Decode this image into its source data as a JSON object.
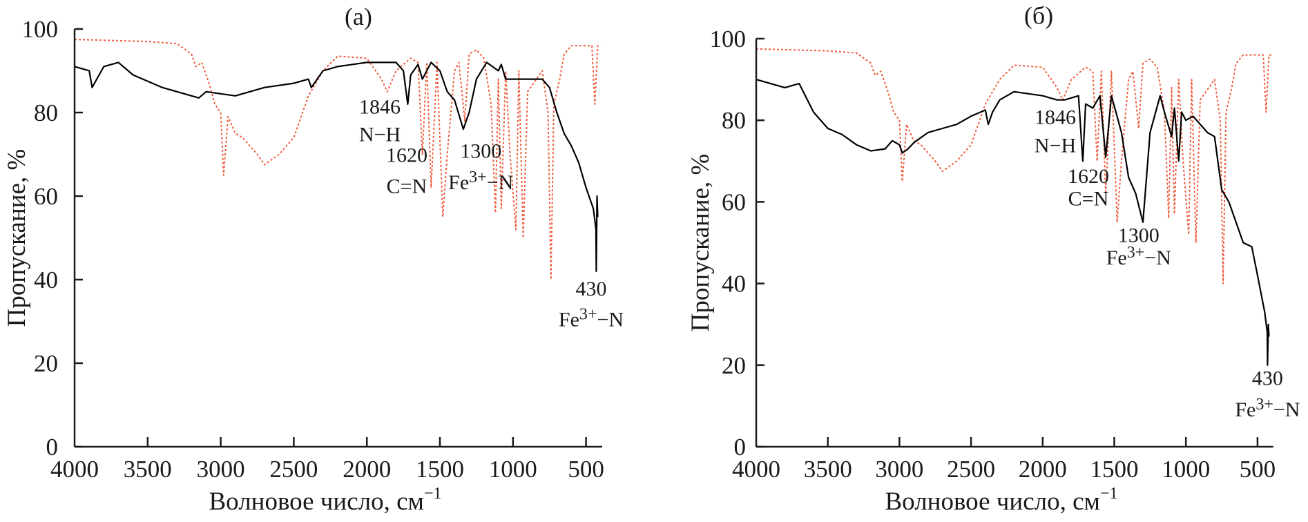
{
  "chart_data": [
    {
      "type": "line",
      "title": "(a)",
      "xlabel": "Волновое число, см",
      "xlabel_sup": "−1",
      "ylabel": "Пропускание, %",
      "xlim": [
        4000,
        400
      ],
      "ylim": [
        0,
        100
      ],
      "xticks": [
        4000,
        3500,
        3000,
        2500,
        2000,
        1500,
        1000,
        500
      ],
      "yticks": [
        0,
        20,
        40,
        60,
        80,
        100
      ],
      "grid": false,
      "series": [
        {
          "name": "reference",
          "color": "#f05a3c",
          "style": "dotted",
          "x": [
            4000,
            3500,
            3300,
            3200,
            3170,
            3130,
            3080,
            3040,
            3000,
            2980,
            2950,
            2900,
            2850,
            2800,
            2750,
            2700,
            2600,
            2500,
            2400,
            2300,
            2200,
            2000,
            1900,
            1860,
            1800,
            1700,
            1650,
            1620,
            1590,
            1560,
            1520,
            1480,
            1450,
            1400,
            1370,
            1330,
            1300,
            1250,
            1200,
            1150,
            1120,
            1100,
            1080,
            1050,
            1020,
            980,
            960,
            930,
            900,
            800,
            760,
            740,
            720,
            680,
            650,
            600,
            500,
            460,
            440,
            420,
            400
          ],
          "y": [
            97.5,
            97,
            96.5,
            94,
            91,
            92,
            87,
            82,
            80,
            65,
            79,
            75,
            74,
            72,
            70,
            67.5,
            70,
            74,
            84,
            90,
            93.5,
            93,
            88,
            85,
            90,
            93,
            92,
            70,
            92,
            62,
            92,
            55,
            70,
            90,
            92,
            78,
            94,
            95,
            93,
            82,
            56,
            88,
            57,
            90,
            70,
            52,
            90,
            50,
            85,
            90,
            80,
            40,
            82,
            88,
            94,
            96,
            96,
            96,
            82,
            96,
            96
          ]
        },
        {
          "name": "sample",
          "color": "#000000",
          "style": "solid",
          "x": [
            4000,
            3900,
            3880,
            3800,
            3700,
            3600,
            3400,
            3200,
            3150,
            3100,
            3000,
            2900,
            2700,
            2500,
            2400,
            2380,
            2300,
            2200,
            2000,
            1800,
            1750,
            1720,
            1700,
            1650,
            1620,
            1560,
            1500,
            1450,
            1400,
            1340,
            1300,
            1250,
            1180,
            1100,
            1080,
            1050,
            1000,
            900,
            800,
            750,
            700,
            650,
            600,
            550,
            500,
            450,
            432,
            430,
            425,
            420
          ],
          "y": [
            91,
            90,
            86,
            91,
            92,
            89,
            86,
            84,
            83.5,
            85,
            84.5,
            84,
            86,
            87,
            88,
            86,
            90,
            91,
            92,
            92,
            90,
            82,
            89,
            91.5,
            88,
            92,
            90,
            85,
            83,
            76,
            80,
            88,
            92,
            90,
            91.5,
            88,
            88,
            88,
            88,
            86,
            80,
            75,
            72,
            68,
            62,
            57,
            52,
            42,
            60,
            55
          ]
        }
      ],
      "annotations": [
        {
          "lines": [
            "1846",
            "N−H"
          ],
          "x": 1911,
          "y": [
            81.6,
            75
          ]
        },
        {
          "lines": [
            "1620",
            "C=N"
          ],
          "x": 1727,
          "y": [
            70,
            62.6
          ]
        },
        {
          "lines": [
            "1300",
            "Fe3+−N"
          ],
          "x": 1220,
          "y": [
            71,
            63.5
          ]
        },
        {
          "lines": [
            "430",
            "Fe3+−N"
          ],
          "x": 465,
          "y": [
            38,
            30.7
          ]
        }
      ],
      "title_pos": {
        "x": 2058,
        "y": 103
      }
    },
    {
      "type": "line",
      "title": "(б)",
      "xlabel": "Волновое число, см",
      "xlabel_sup": "−1",
      "ylabel": "Пропускание, %",
      "xlim": [
        4000,
        400
      ],
      "ylim": [
        0,
        100
      ],
      "xticks": [
        4000,
        3500,
        3000,
        2500,
        2000,
        1500,
        1000,
        500
      ],
      "yticks": [
        0,
        20,
        40,
        60,
        80,
        100
      ],
      "grid": false,
      "series": [
        {
          "name": "reference",
          "color": "#f05a3c",
          "style": "dotted",
          "x": [
            4000,
            3500,
            3300,
            3200,
            3170,
            3130,
            3080,
            3040,
            3000,
            2980,
            2950,
            2900,
            2850,
            2800,
            2750,
            2700,
            2600,
            2500,
            2400,
            2300,
            2200,
            2000,
            1900,
            1860,
            1800,
            1700,
            1650,
            1620,
            1590,
            1560,
            1520,
            1480,
            1450,
            1400,
            1370,
            1330,
            1300,
            1250,
            1200,
            1150,
            1120,
            1100,
            1080,
            1050,
            1020,
            980,
            960,
            930,
            900,
            800,
            760,
            740,
            720,
            680,
            650,
            600,
            500,
            460,
            440,
            420,
            400
          ],
          "y": [
            97.5,
            97,
            96.5,
            94,
            91,
            92,
            87,
            82,
            80,
            65,
            79,
            75,
            74,
            72,
            70,
            67.5,
            70,
            74,
            84,
            90,
            93.5,
            93,
            88,
            85,
            90,
            93,
            92,
            70,
            92,
            62,
            92,
            55,
            70,
            90,
            92,
            78,
            94,
            95,
            93,
            82,
            56,
            88,
            57,
            90,
            70,
            52,
            90,
            50,
            85,
            90,
            80,
            40,
            82,
            88,
            94,
            96,
            96,
            96,
            82,
            96,
            96
          ]
        },
        {
          "name": "sample",
          "color": "#000000",
          "style": "solid",
          "x": [
            4000,
            3800,
            3700,
            3600,
            3500,
            3400,
            3300,
            3200,
            3100,
            3050,
            3000,
            2980,
            2940,
            2900,
            2800,
            2700,
            2600,
            2500,
            2400,
            2380,
            2350,
            2300,
            2200,
            2000,
            1900,
            1846,
            1750,
            1720,
            1700,
            1650,
            1600,
            1560,
            1520,
            1450,
            1400,
            1350,
            1300,
            1250,
            1180,
            1150,
            1100,
            1080,
            1050,
            1030,
            1000,
            950,
            850,
            800,
            750,
            700,
            650,
            600,
            540,
            500,
            450,
            432,
            430,
            425,
            420
          ],
          "y": [
            90,
            88,
            89,
            82,
            78,
            76.5,
            74,
            72.5,
            73,
            75,
            74,
            72,
            73,
            74.5,
            77,
            78,
            79,
            81,
            82.5,
            79,
            82,
            85,
            87,
            86,
            85,
            85,
            86,
            70,
            84,
            83,
            86,
            71,
            86,
            77,
            66,
            62,
            55,
            77,
            86,
            82,
            76,
            83,
            70,
            82,
            80,
            81,
            77,
            76,
            63,
            60,
            55,
            50,
            49,
            42,
            33,
            28,
            20,
            30,
            27
          ]
        }
      ],
      "annotations": [
        {
          "lines": [
            "1846",
            "N−H"
          ],
          "x": 1912,
          "y": [
            81,
            74
          ]
        },
        {
          "lines": [
            "1620",
            "C=N"
          ],
          "x": 1681,
          "y": [
            66.5,
            61
          ]
        },
        {
          "lines": [
            "1300",
            "Fe3+−N"
          ],
          "x": 1330,
          "y": [
            52,
            46.5
          ]
        },
        {
          "lines": [
            "430",
            "Fe3+−N"
          ],
          "x": 430,
          "y": [
            17,
            9.3
          ]
        }
      ],
      "title_pos": {
        "x": 2028,
        "y": 105.7
      }
    }
  ]
}
